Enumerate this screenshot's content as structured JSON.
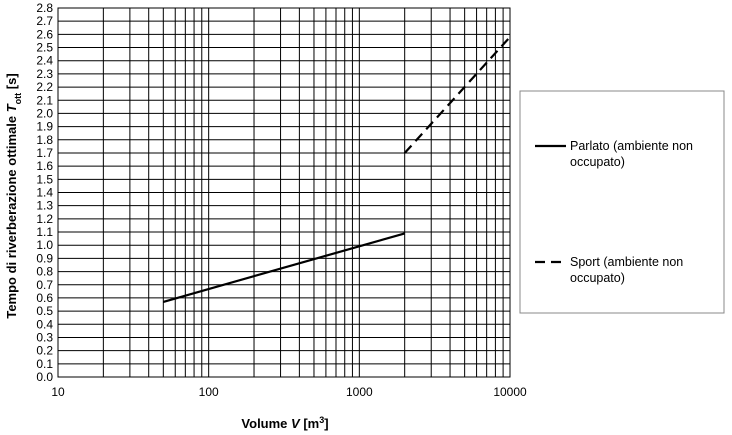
{
  "chart_data": {
    "type": "line",
    "x_scale": "log",
    "xlim": [
      10,
      10000
    ],
    "ylim": [
      0,
      2.8
    ],
    "x_ticks": [
      "10",
      "100",
      "1000",
      "10000"
    ],
    "y_ticks": [
      "0.0",
      "0.1",
      "0.2",
      "0.3",
      "0.4",
      "0.5",
      "0.6",
      "0.7",
      "0.8",
      "0.9",
      "1.0",
      "1.1",
      "1.2",
      "1.3",
      "1.4",
      "1.5",
      "1.6",
      "1.7",
      "1.8",
      "1.9",
      "2.0",
      "2.1",
      "2.2",
      "2.3",
      "2.4",
      "2.5",
      "2.6",
      "2.7",
      "2.8"
    ],
    "xlabel": {
      "pre": "Volume ",
      "var": "V",
      "unit": " [m",
      "sup": "3",
      "post": "]"
    },
    "ylabel": {
      "pre": "Tempo di riverberazione ottimale ",
      "var": "T",
      "sub": "ott",
      "post": " [s]"
    },
    "grid": true,
    "legend_position": "right",
    "series": [
      {
        "name_lines": [
          "Parlato (ambiente non",
          "occupato)"
        ],
        "dash": "solid",
        "color": "#000000",
        "x": [
          50,
          2000
        ],
        "y": [
          0.57,
          1.09
        ]
      },
      {
        "name_lines": [
          "Sport (ambiente non",
          "occupato)"
        ],
        "dash": "dashed",
        "color": "#000000",
        "x": [
          2000,
          10000
        ],
        "y": [
          1.7,
          2.58
        ]
      }
    ]
  }
}
